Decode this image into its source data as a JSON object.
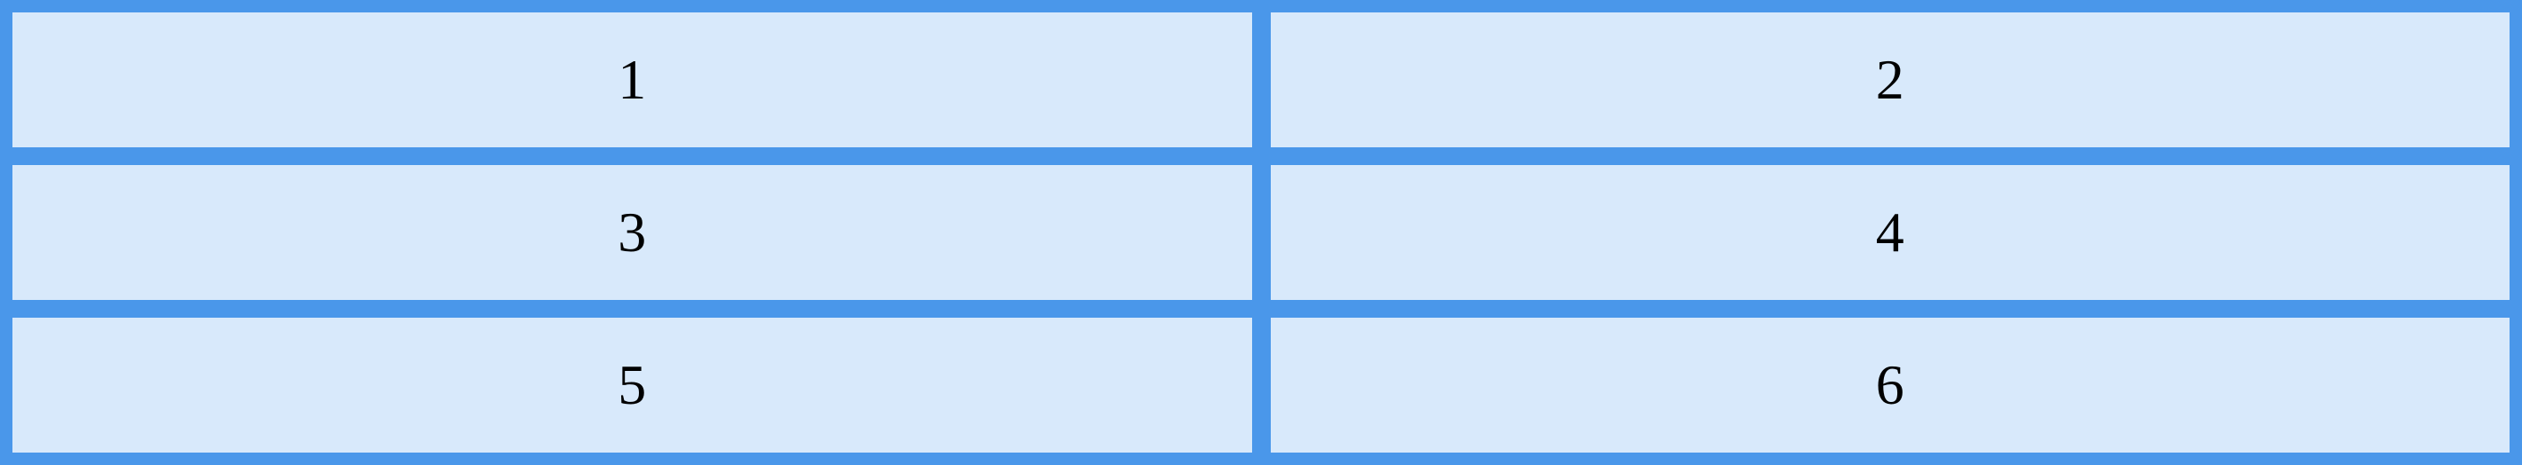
{
  "colors": {
    "border": "#4a97ea",
    "cell_background": "#d8e9fb",
    "text": "#000000"
  },
  "grid": {
    "cells": [
      "1",
      "2",
      "3",
      "4",
      "5",
      "6"
    ]
  }
}
